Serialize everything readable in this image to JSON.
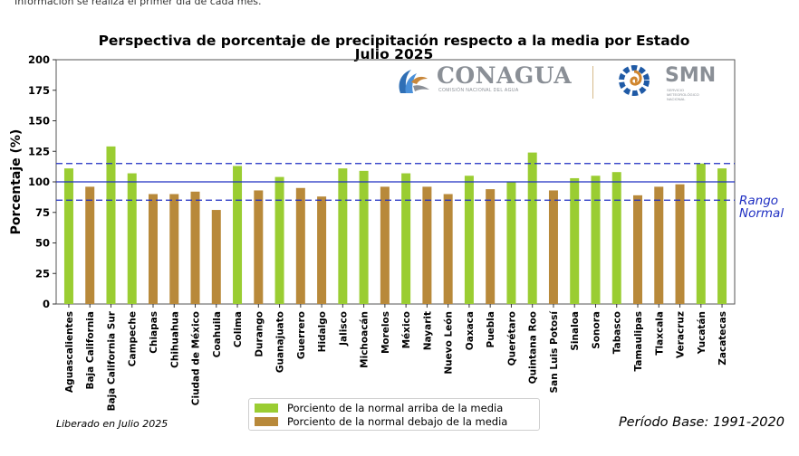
{
  "top_note": "Información se realiza el primer día de cada mes.",
  "logos": {
    "conagua_name": "CONAGUA",
    "conagua_sub": "COMISIÓN NACIONAL DEL AGUA",
    "smn_name": "SMN",
    "smn_sub_1": "SERVICIO",
    "smn_sub_2": "METEOROLÓGICO",
    "smn_sub_3": "NACIONAL"
  },
  "footer": {
    "released": "Liberado en Julio 2025",
    "base_period": "Período Base: 1991-2020"
  },
  "colors": {
    "above": "#9acd32",
    "below": "#b8893a",
    "reference": "#1f2fc2"
  },
  "chart_data": {
    "type": "bar",
    "title": "Perspectiva de porcentaje de precipitación respecto a la media por Estado",
    "subtitle": "Julio 2025",
    "xlabel": "",
    "ylabel": "Porcentaje (%)",
    "ylim": [
      0,
      200
    ],
    "yticks": [
      0,
      25,
      50,
      75,
      100,
      125,
      150,
      175,
      200
    ],
    "grid": false,
    "legend_position": "bottom-center",
    "categories": [
      "Aguascalientes",
      "Baja California",
      "Baja California Sur",
      "Campeche",
      "Chiapas",
      "Chihuahua",
      "Ciudad de México",
      "Coahuila",
      "Colima",
      "Durango",
      "Guanajuato",
      "Guerrero",
      "Hidalgo",
      "Jalisco",
      "Michoacán",
      "Morelos",
      "México",
      "Nayarit",
      "Nuevo León",
      "Oaxaca",
      "Puebla",
      "Querétaro",
      "Quintana Roo",
      "San Luis Potosí",
      "Sinaloa",
      "Sonora",
      "Tabasco",
      "Tamaulipas",
      "Tlaxcala",
      "Veracruz",
      "Yucatán",
      "Zacatecas"
    ],
    "values": [
      111,
      96,
      129,
      107,
      90,
      90,
      92,
      77,
      113,
      93,
      104,
      95,
      88,
      111,
      109,
      96,
      107,
      96,
      90,
      105,
      94,
      100,
      124,
      93,
      103,
      105,
      108,
      89,
      96,
      98,
      115,
      111
    ],
    "series": [
      {
        "name": "Porciento de la normal arriba de la media",
        "color": "#9acd32"
      },
      {
        "name": "Porciento de la normal debajo de la media",
        "color": "#b8893a"
      }
    ],
    "reference_lines": [
      {
        "value": 100,
        "style": "solid"
      },
      {
        "value": 115,
        "style": "dashed"
      },
      {
        "value": 85,
        "style": "dashed"
      }
    ],
    "annotation": "Rango Normal"
  }
}
